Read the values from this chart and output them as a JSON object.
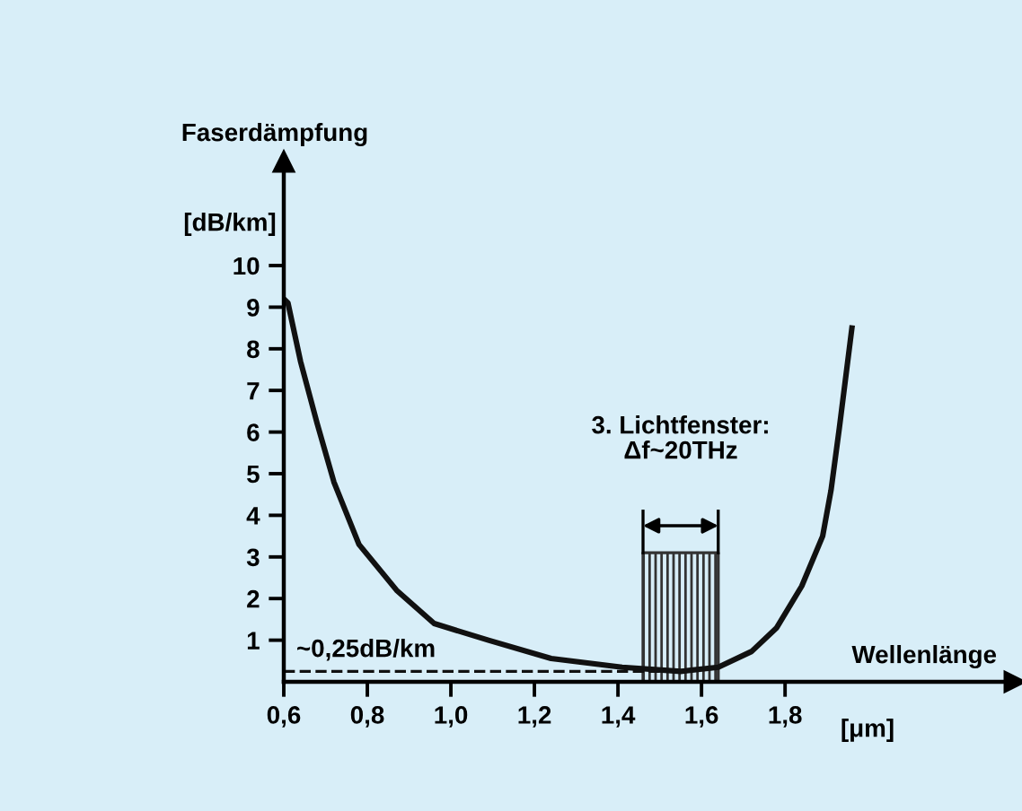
{
  "chart_data": {
    "type": "line",
    "xlabel": "Wellenlänge",
    "ylabel": "Faserdämpfung",
    "xlim": [
      0.6,
      2.35
    ],
    "ylim": [
      0,
      12.5
    ],
    "xticks": [
      {
        "value": 0.6,
        "label": "0,6"
      },
      {
        "value": 0.8,
        "label": "0,8"
      },
      {
        "value": 1.0,
        "label": "1,0"
      },
      {
        "value": 1.2,
        "label": "1,2"
      },
      {
        "value": 1.4,
        "label": "1,4"
      },
      {
        "value": 1.6,
        "label": "1,6"
      },
      {
        "value": 1.8,
        "label": "1,8"
      }
    ],
    "yticks": [
      1,
      2,
      3,
      4,
      5,
      6,
      7,
      8,
      9,
      10
    ],
    "grid": false,
    "legend": false,
    "series": [
      {
        "color": "#111111",
        "x": [
          0.6,
          0.61,
          0.64,
          0.68,
          0.72,
          0.78,
          0.87,
          0.96,
          1.09,
          1.24,
          1.41,
          1.55,
          1.64,
          1.72,
          1.78,
          1.84,
          1.89,
          1.91,
          1.93,
          1.96
        ],
        "values": [
          9.2,
          9.1,
          7.7,
          6.2,
          4.8,
          3.3,
          2.2,
          1.4,
          1.0,
          0.56,
          0.35,
          0.25,
          0.35,
          0.73,
          1.3,
          2.3,
          3.5,
          4.6,
          6.1,
          8.5
        ]
      },
      {
        "type": "area",
        "color": "#333333",
        "x": [
          1.46,
          1.64
        ],
        "values": [
          3.1,
          3.1
        ]
      }
    ],
    "ref_lines": [
      {
        "axis": "y",
        "value": 0.25,
        "label": "~0,25dB/km",
        "line_style": "dashed",
        "color": "#111111"
      }
    ],
    "annotations": [
      "3. Lichtfenster:\nΔf~20THz",
      "[dB/km]",
      "[μm]"
    ]
  }
}
